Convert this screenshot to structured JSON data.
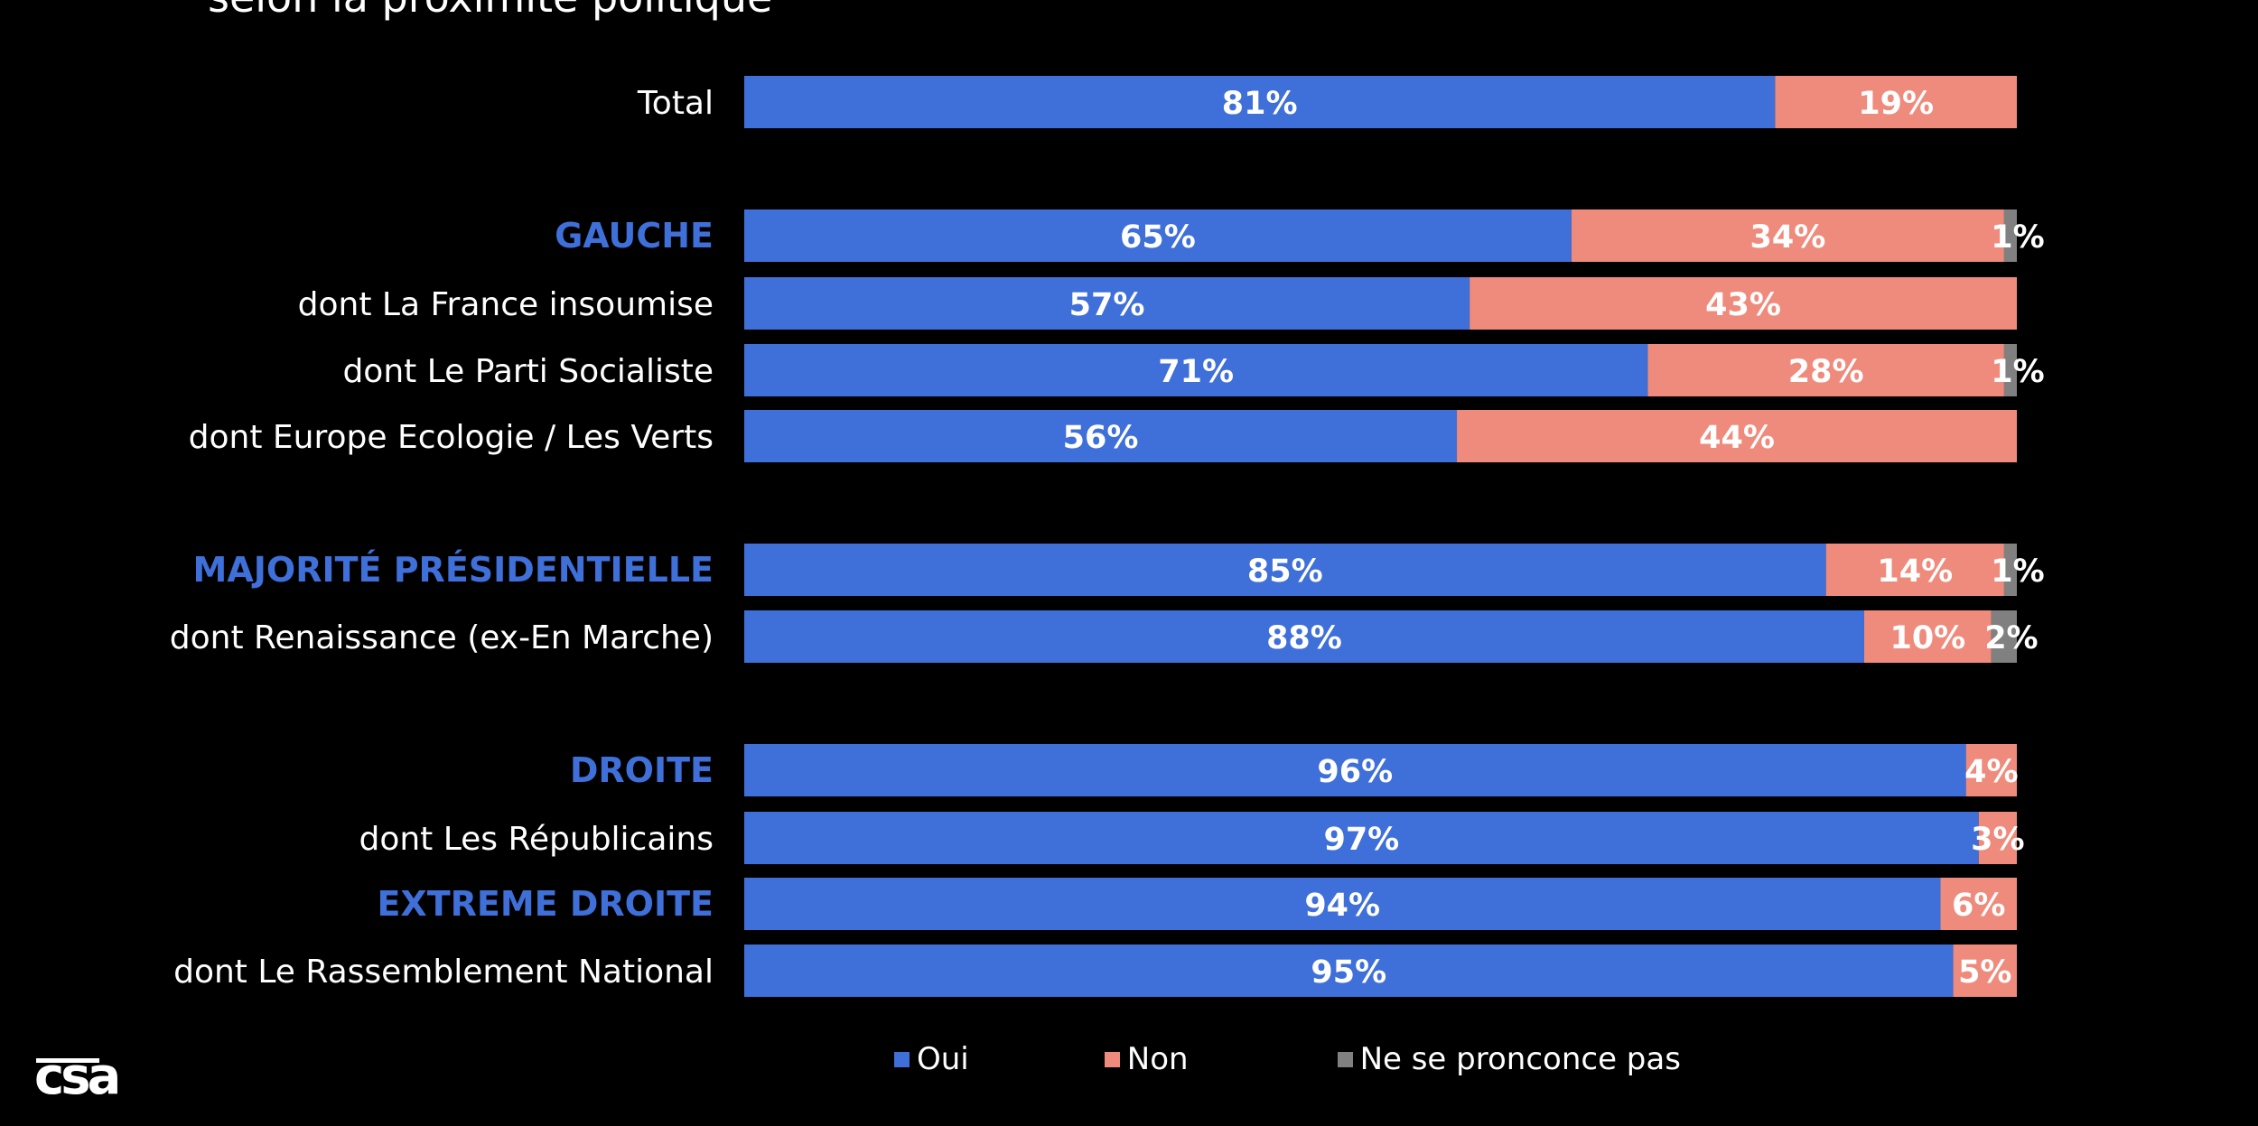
{
  "page": {
    "top_title": "selon la proximité politique",
    "logo_text": "csa"
  },
  "legend": {
    "items": [
      {
        "label": "Oui",
        "color": "#3f6fd8"
      },
      {
        "label": "Non",
        "color": "#ef8b7c"
      },
      {
        "label": "Ne se pronconce pas",
        "color": "#808080"
      }
    ]
  },
  "chart_data": {
    "type": "bar",
    "orientation": "horizontal",
    "stacked": true,
    "percent": true,
    "xlim": [
      0,
      100
    ],
    "grid": false,
    "legend_position": "bottom",
    "categories": [
      {
        "label": "Total",
        "group_header": false
      },
      {
        "label": "GAUCHE",
        "group_header": true
      },
      {
        "label": "dont La France insoumise",
        "group_header": false
      },
      {
        "label": "dont Le Parti Socialiste",
        "group_header": false
      },
      {
        "label": "dont Europe Ecologie / Les Verts",
        "group_header": false
      },
      {
        "label": "MAJORITÉ PRÉSIDENTIELLE",
        "group_header": true
      },
      {
        "label": "dont Renaissance (ex-En Marche)",
        "group_header": false
      },
      {
        "label": "DROITE",
        "group_header": true
      },
      {
        "label": "dont Les Républicains",
        "group_header": false
      },
      {
        "label": "EXTREME DROITE",
        "group_header": true
      },
      {
        "label": "dont Le Rassemblement National",
        "group_header": false
      }
    ],
    "series": [
      {
        "name": "Oui",
        "color": "#3f6fd8",
        "values": [
          81,
          65,
          57,
          71,
          56,
          85,
          88,
          96,
          97,
          94,
          95
        ],
        "labels": [
          "81%",
          "65%",
          "57%",
          "71%",
          "56%",
          "85%",
          "88%",
          "96%",
          "97%",
          "94%",
          "95%"
        ]
      },
      {
        "name": "Non",
        "color": "#ef8b7c",
        "values": [
          19,
          34,
          43,
          28,
          44,
          14,
          10,
          4,
          3,
          6,
          5
        ],
        "labels": [
          "19%",
          "34%",
          "43%",
          "28%",
          "44%",
          "14%",
          "10%",
          "4%",
          "3%",
          "6%",
          "5%"
        ]
      },
      {
        "name": "Ne se pronconce pas",
        "color": "#808080",
        "values": [
          0,
          1,
          0,
          1,
          0,
          1,
          2,
          0,
          0,
          0,
          0
        ],
        "labels": [
          "",
          "1%",
          "",
          "1%",
          "",
          "1%",
          "2%",
          "",
          "",
          "",
          ""
        ]
      }
    ],
    "header_color": "#3f6fd8"
  }
}
